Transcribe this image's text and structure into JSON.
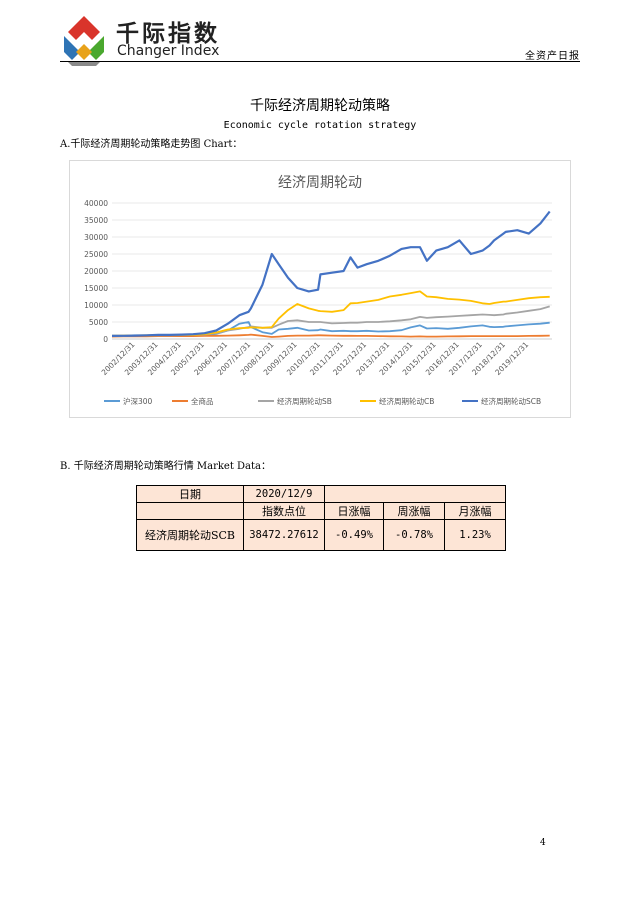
{
  "header": {
    "logo_cn": "千际指数",
    "logo_en": "Changer Index",
    "report_type": "全资产日报",
    "logo_colors": [
      "#d9342b",
      "#2e74b5",
      "#4aa82e",
      "#e8a21a"
    ]
  },
  "title": "千际经济周期轮动策略",
  "subtitle": "Economic cycle rotation strategy",
  "section_a": "A.千际经济周期轮动策略走势图 Chart：",
  "section_b": "B. 千际经济周期轮动策略行情 Market Data：",
  "chart_data": {
    "type": "line",
    "title": "经济周期轮动",
    "ylim": [
      0,
      40000
    ],
    "yticks": [
      "0",
      "5000",
      "10000",
      "15000",
      "20000",
      "25000",
      "30000",
      "35000",
      "40000"
    ],
    "xticks": [
      "2002/12/31",
      "2003/12/31",
      "2004/12/31",
      "2005/12/31",
      "2006/12/31",
      "2007/12/31",
      "2008/12/31",
      "2009/12/31",
      "2010/12/31",
      "2011/12/31",
      "2012/12/31",
      "2013/12/31",
      "2014/12/31",
      "2015/12/31",
      "2016/12/31",
      "2017/12/31",
      "2018/12/31",
      "2019/12/31"
    ],
    "x": [
      2002.0,
      2002.5,
      2003.0,
      2003.5,
      2004.0,
      2004.5,
      2005.0,
      2005.5,
      2006.0,
      2006.5,
      2007.0,
      2007.5,
      2007.9,
      2008.0,
      2008.5,
      2008.9,
      2009.2,
      2009.6,
      2010.0,
      2010.5,
      2010.9,
      2011.0,
      2011.5,
      2012.0,
      2012.3,
      2012.6,
      2013.0,
      2013.5,
      2014.0,
      2014.5,
      2014.9,
      2015.3,
      2015.6,
      2016.0,
      2016.5,
      2017.0,
      2017.5,
      2018.0,
      2018.3,
      2018.5,
      2018.9,
      2019.0,
      2019.5,
      2020.0,
      2020.5,
      2020.9
    ],
    "grid": true,
    "legend": "bottom",
    "series": [
      {
        "name": "沪深300",
        "color": "#5b9bd5",
        "values": [
          1000,
          1000,
          1100,
          1050,
          1200,
          1000,
          1000,
          900,
          1100,
          1500,
          2500,
          4500,
          5000,
          3500,
          2000,
          1500,
          2800,
          3000,
          3300,
          2500,
          2600,
          2800,
          2300,
          2400,
          2300,
          2300,
          2400,
          2200,
          2300,
          2600,
          3400,
          4000,
          3100,
          3200,
          3000,
          3300,
          3700,
          4000,
          3600,
          3500,
          3600,
          3700,
          4000,
          4300,
          4500,
          4800
        ]
      },
      {
        "name": "全商品",
        "color": "#ed7d31",
        "values": [
          700,
          750,
          800,
          800,
          850,
          850,
          850,
          850,
          900,
          950,
          1000,
          1100,
          1200,
          1300,
          900,
          600,
          700,
          900,
          1000,
          1000,
          1100,
          1100,
          1000,
          950,
          950,
          900,
          900,
          850,
          800,
          750,
          700,
          750,
          700,
          700,
          750,
          800,
          850,
          850,
          850,
          850,
          850,
          850,
          850,
          900,
          950,
          1000
        ]
      },
      {
        "name": "经济周期轮动SB",
        "color": "#a5a5a5",
        "values": [
          900,
          950,
          1000,
          1050,
          1100,
          1100,
          1150,
          1200,
          1300,
          1700,
          2500,
          3000,
          3500,
          3700,
          3300,
          3300,
          4200,
          5300,
          5500,
          5000,
          5000,
          5000,
          4600,
          4700,
          4800,
          4800,
          5000,
          5000,
          5200,
          5500,
          5800,
          6500,
          6200,
          6400,
          6600,
          6800,
          7000,
          7200,
          7100,
          7000,
          7200,
          7400,
          7800,
          8300,
          8800,
          9600
        ]
      },
      {
        "name": "经济周期轮动CB",
        "color": "#ffc000",
        "values": [
          950,
          1000,
          1050,
          1100,
          1150,
          1150,
          1200,
          1250,
          1400,
          1900,
          2800,
          3200,
          3300,
          3400,
          3300,
          3500,
          6000,
          8500,
          10300,
          9000,
          8300,
          8200,
          8000,
          8500,
          10500,
          10600,
          11000,
          11500,
          12500,
          13000,
          13500,
          14000,
          12500,
          12300,
          11800,
          11600,
          11200,
          10500,
          10300,
          10600,
          11000,
          11000,
          11500,
          12000,
          12300,
          12400
        ]
      },
      {
        "name": "经济周期轮动SCB",
        "color": "#4472c4",
        "values": [
          900,
          950,
          1000,
          1100,
          1200,
          1200,
          1300,
          1400,
          1700,
          2500,
          4500,
          7000,
          8000,
          9000,
          16000,
          25000,
          22000,
          18000,
          15000,
          14000,
          14500,
          19000,
          19500,
          20000,
          24000,
          21000,
          22000,
          23000,
          24500,
          26500,
          27000,
          27000,
          23000,
          26000,
          27000,
          29000,
          25000,
          26000,
          27500,
          29000,
          31000,
          31500,
          32000,
          31000,
          34000,
          37500
        ]
      }
    ]
  },
  "market_table": {
    "date_label": "日期",
    "date_value": "2020/12/9",
    "headers": [
      "指数点位",
      "日涨幅",
      "周涨幅",
      "月涨幅"
    ],
    "row": {
      "name": "经济周期轮动SCB",
      "level": "38472.27612",
      "daily": "-0.49%",
      "weekly": "-0.78%",
      "monthly": "1.23%"
    }
  },
  "page_number": "4"
}
